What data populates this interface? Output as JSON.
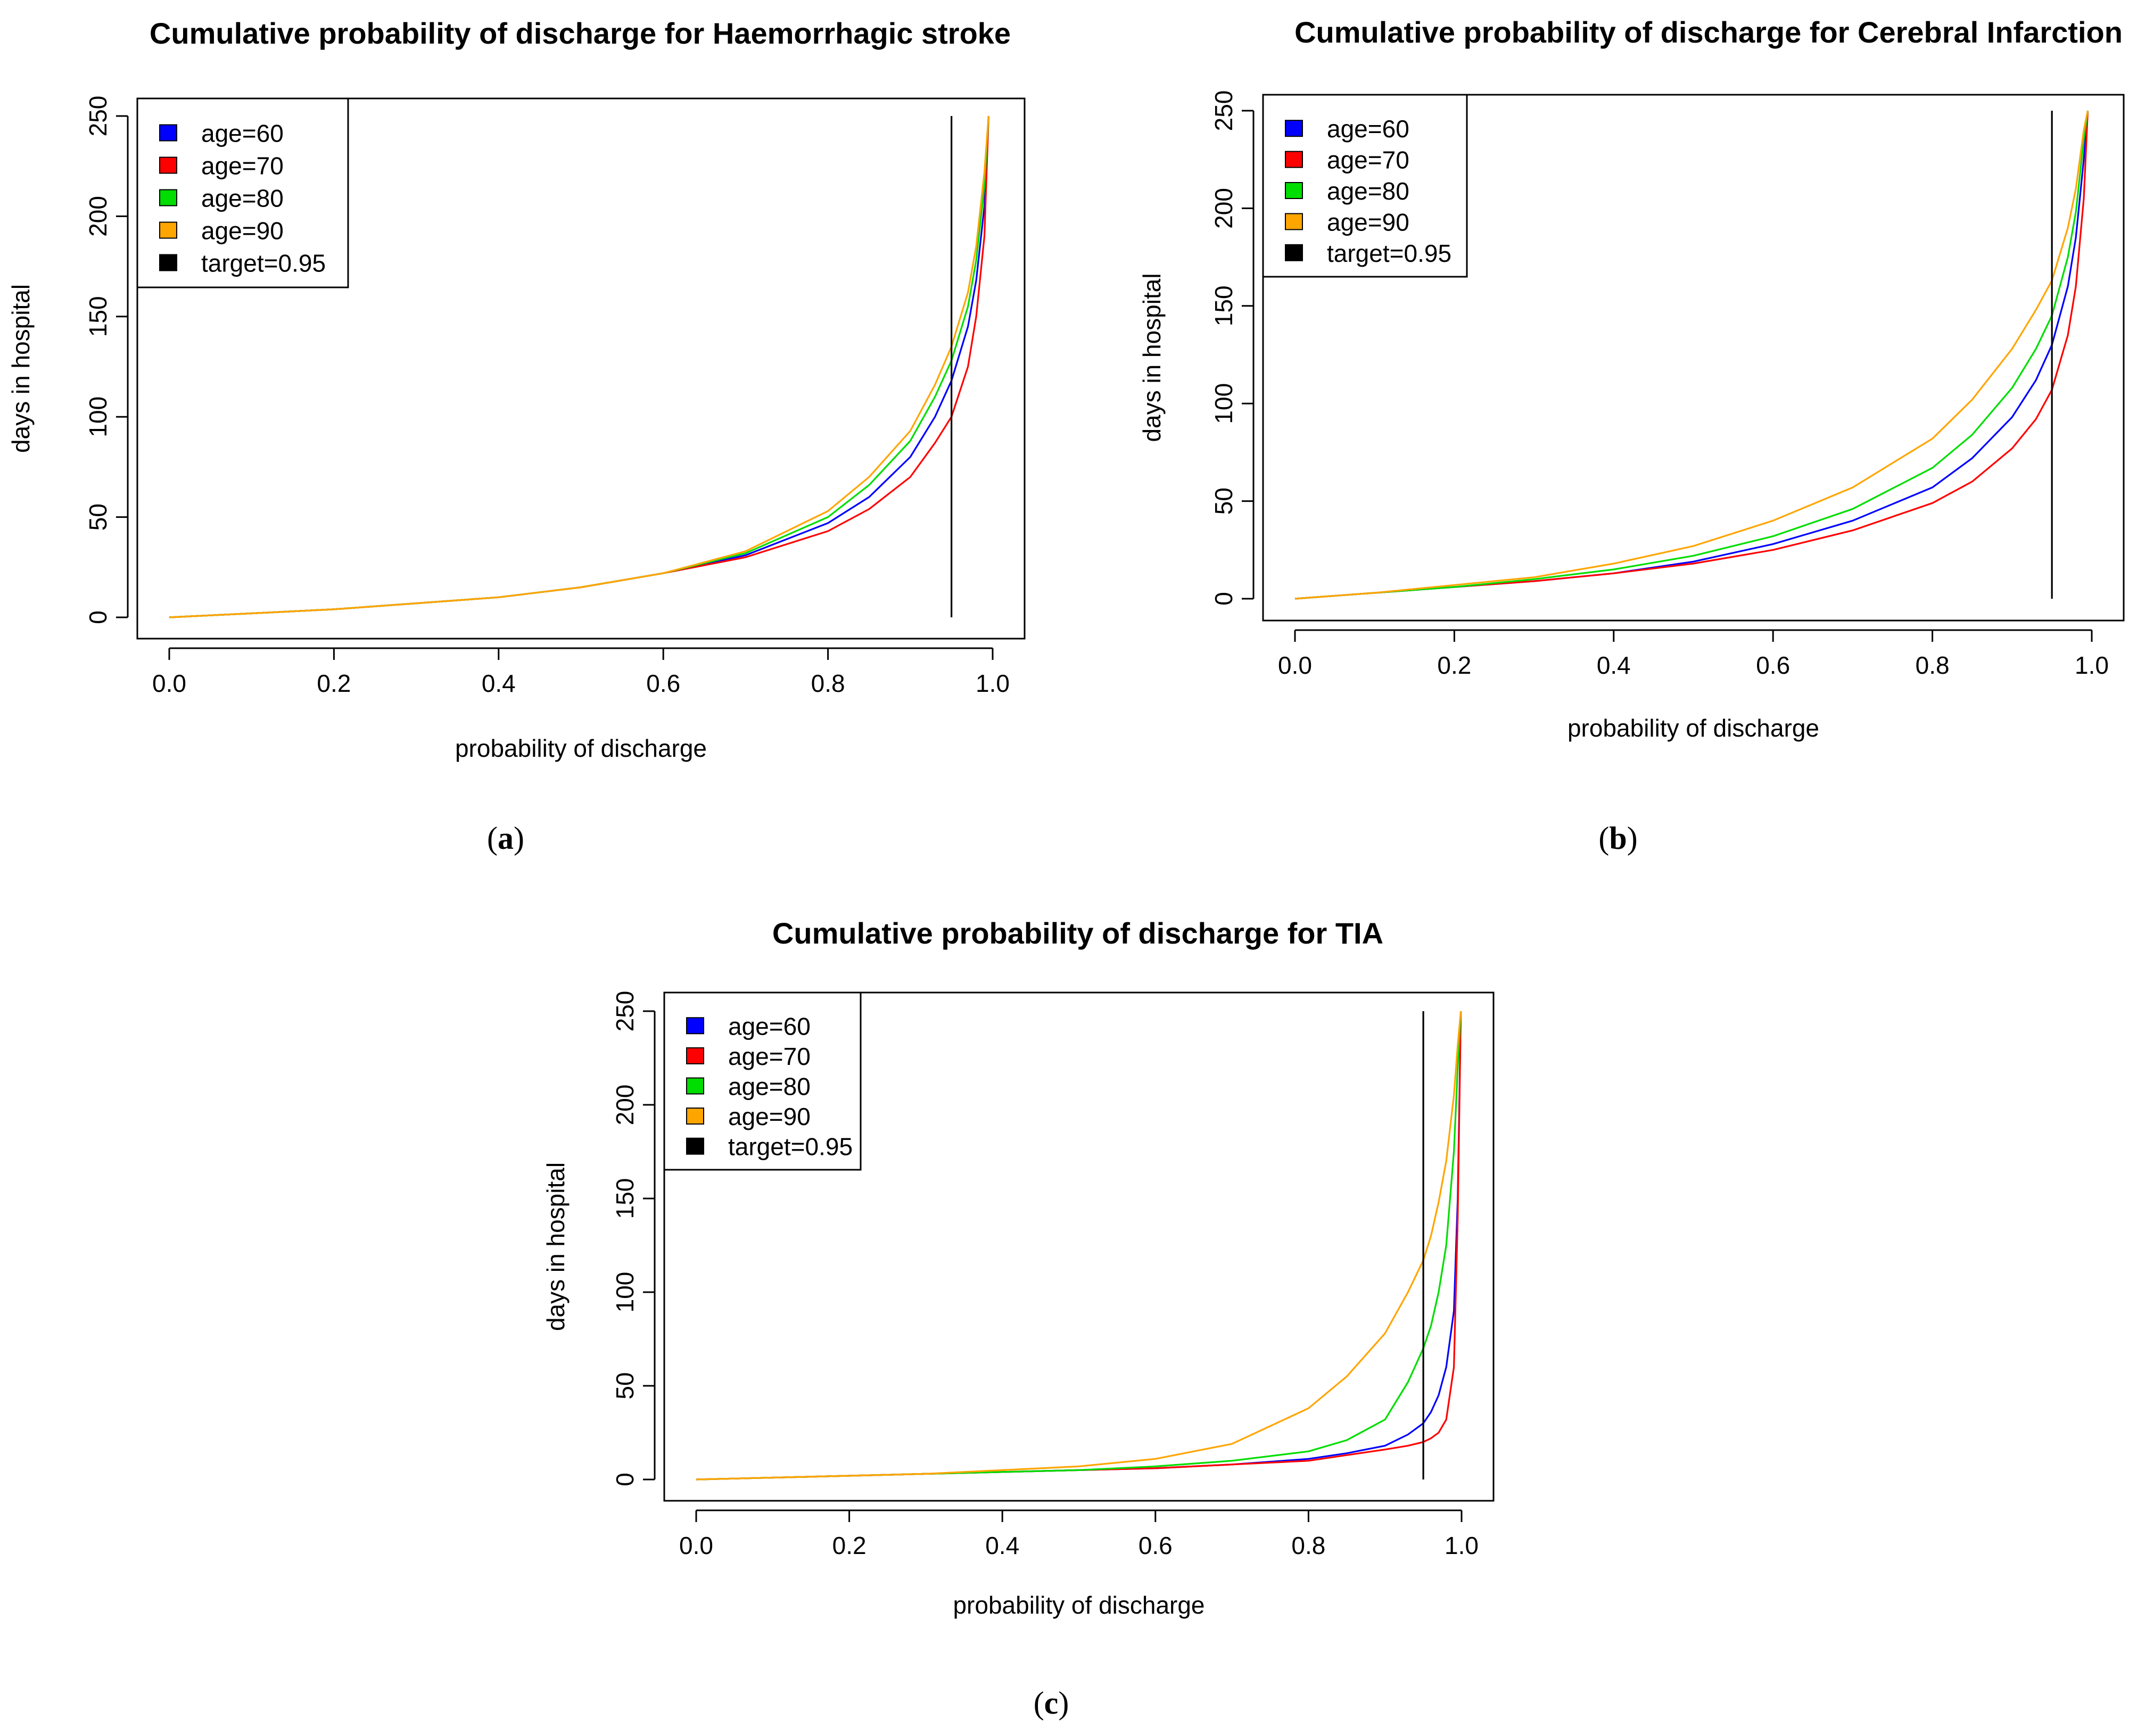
{
  "figure": {
    "captions": [
      "a",
      "b",
      "c"
    ]
  },
  "chart_data": [
    {
      "type": "line",
      "title": "Cumulative probability of discharge for Haemorrhagic stroke",
      "xlabel": "probability of discharge",
      "ylabel": "days in hospital",
      "xlim": [
        0,
        1
      ],
      "ylim": [
        0,
        250
      ],
      "xticks": [
        "0.0",
        "0.2",
        "0.4",
        "0.6",
        "0.8",
        "1.0"
      ],
      "yticks": [
        "0",
        "50",
        "100",
        "150",
        "200",
        "250"
      ],
      "grid": false,
      "legend_position": "top-left",
      "legend": [
        "age=60",
        "age=70",
        "age=80",
        "age=90",
        "target=0.95"
      ],
      "target": 0.95,
      "target_color": "#000000",
      "x": [
        0,
        0.1,
        0.2,
        0.3,
        0.4,
        0.5,
        0.6,
        0.7,
        0.8,
        0.85,
        0.9,
        0.93,
        0.95,
        0.97,
        0.98,
        0.99,
        0.995
      ],
      "series": [
        {
          "name": "age=60",
          "color": "#0000ff",
          "values": [
            0,
            2,
            4,
            7,
            10,
            15,
            22,
            31,
            47,
            60,
            80,
            100,
            118,
            145,
            168,
            205,
            250
          ]
        },
        {
          "name": "age=70",
          "color": "#ff0000",
          "values": [
            0,
            2,
            4,
            7,
            10,
            15,
            22,
            30,
            43,
            54,
            70,
            87,
            100,
            125,
            150,
            190,
            250
          ]
        },
        {
          "name": "age=80",
          "color": "#00dd00",
          "values": [
            0,
            2,
            4,
            7,
            10,
            15,
            22,
            32,
            50,
            66,
            88,
            110,
            128,
            155,
            178,
            215,
            250
          ]
        },
        {
          "name": "age=90",
          "color": "#ffa500",
          "values": [
            0,
            2,
            4,
            7,
            10,
            15,
            22,
            33,
            53,
            70,
            93,
            116,
            135,
            162,
            185,
            222,
            250
          ]
        }
      ]
    },
    {
      "type": "line",
      "title": "Cumulative probability of discharge for Cerebral Infarction",
      "xlabel": "probability of discharge",
      "ylabel": "days in hospital",
      "xlim": [
        0,
        1
      ],
      "ylim": [
        0,
        250
      ],
      "xticks": [
        "0.0",
        "0.2",
        "0.4",
        "0.6",
        "0.8",
        "1.0"
      ],
      "yticks": [
        "0",
        "50",
        "100",
        "150",
        "200",
        "250"
      ],
      "grid": false,
      "legend_position": "top-left",
      "legend": [
        "age=60",
        "age=70",
        "age=80",
        "age=90",
        "target=0.95"
      ],
      "target": 0.95,
      "target_color": "#000000",
      "x": [
        0,
        0.1,
        0.2,
        0.3,
        0.4,
        0.5,
        0.6,
        0.7,
        0.8,
        0.85,
        0.9,
        0.93,
        0.95,
        0.97,
        0.98,
        0.99,
        0.995
      ],
      "series": [
        {
          "name": "age=60",
          "color": "#0000ff",
          "values": [
            0,
            3,
            6,
            9,
            13,
            19,
            28,
            40,
            57,
            72,
            93,
            112,
            130,
            160,
            185,
            225,
            250
          ]
        },
        {
          "name": "age=70",
          "color": "#ff0000",
          "values": [
            0,
            3,
            6,
            9,
            13,
            18,
            25,
            35,
            49,
            60,
            77,
            92,
            107,
            135,
            160,
            205,
            250
          ]
        },
        {
          "name": "age=80",
          "color": "#00dd00",
          "values": [
            0,
            3,
            6,
            10,
            15,
            22,
            32,
            46,
            67,
            84,
            108,
            128,
            145,
            175,
            198,
            235,
            250
          ]
        },
        {
          "name": "age=90",
          "color": "#ffa500",
          "values": [
            0,
            3,
            7,
            11,
            18,
            27,
            40,
            57,
            82,
            102,
            128,
            148,
            163,
            190,
            210,
            240,
            250
          ]
        }
      ]
    },
    {
      "type": "line",
      "title": "Cumulative probability of discharge for TIA",
      "xlabel": "probability of discharge",
      "ylabel": "days in hospital",
      "xlim": [
        0,
        1
      ],
      "ylim": [
        0,
        250
      ],
      "xticks": [
        "0.0",
        "0.2",
        "0.4",
        "0.6",
        "0.8",
        "1.0"
      ],
      "yticks": [
        "0",
        "50",
        "100",
        "150",
        "200",
        "250"
      ],
      "grid": false,
      "legend_position": "top-left",
      "legend": [
        "age=60",
        "age=70",
        "age=80",
        "age=90",
        "target=0.95"
      ],
      "target": 0.95,
      "target_color": "#000000",
      "x": [
        0,
        0.1,
        0.2,
        0.3,
        0.4,
        0.5,
        0.6,
        0.7,
        0.8,
        0.85,
        0.9,
        0.93,
        0.95,
        0.96,
        0.97,
        0.98,
        0.99,
        0.995,
        0.999
      ],
      "series": [
        {
          "name": "age=60",
          "color": "#0000ff",
          "values": [
            0,
            1,
            2,
            3,
            4,
            5,
            6,
            8,
            11,
            14,
            18,
            24,
            30,
            36,
            45,
            60,
            90,
            150,
            250
          ]
        },
        {
          "name": "age=70",
          "color": "#ff0000",
          "values": [
            0,
            1,
            2,
            3,
            4,
            5,
            6,
            8,
            10,
            13,
            16,
            18,
            20,
            22,
            25,
            32,
            60,
            140,
            250
          ]
        },
        {
          "name": "age=80",
          "color": "#00dd00",
          "values": [
            0,
            1,
            2,
            3,
            4,
            5,
            7,
            10,
            15,
            21,
            32,
            52,
            70,
            82,
            100,
            125,
            175,
            220,
            250
          ]
        },
        {
          "name": "age=90",
          "color": "#ffa500",
          "values": [
            0,
            1,
            2,
            3,
            5,
            7,
            11,
            19,
            38,
            55,
            78,
            100,
            117,
            130,
            148,
            170,
            205,
            232,
            250
          ]
        }
      ]
    }
  ]
}
